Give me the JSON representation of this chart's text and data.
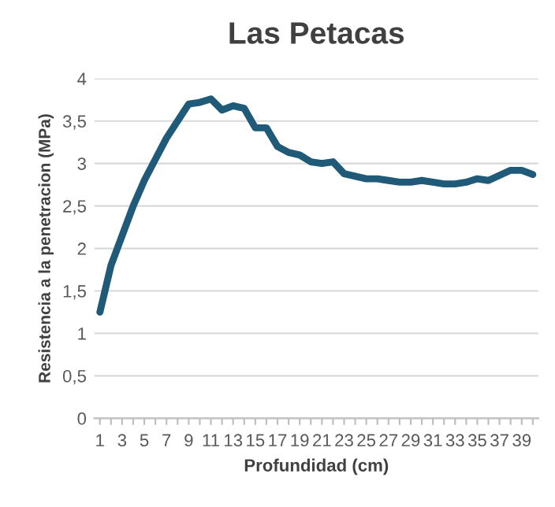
{
  "chart_data": {
    "type": "line",
    "title": "Las Petacas",
    "xlabel": "Profundidad (cm)",
    "ylabel": "Resistencia a la penetracion (MPa)",
    "categories": [
      "1",
      null,
      "3",
      null,
      "5",
      null,
      "7",
      null,
      "9",
      null,
      "11",
      null,
      "13",
      null,
      "15",
      null,
      "17",
      null,
      "19",
      null,
      "21",
      null,
      "23",
      null,
      "25",
      null,
      "27",
      null,
      "29",
      null,
      "31",
      null,
      "33",
      null,
      "35",
      null,
      "37",
      null,
      "39",
      null
    ],
    "series": [
      {
        "color": "#1f5a78",
        "values": [
          1.25,
          1.8,
          2.15,
          2.5,
          2.8,
          3.05,
          3.3,
          3.5,
          3.7,
          3.72,
          3.76,
          3.63,
          3.68,
          3.65,
          3.42,
          3.42,
          3.2,
          3.13,
          3.1,
          3.02,
          3.0,
          3.02,
          2.88,
          2.85,
          2.82,
          2.82,
          2.8,
          2.78,
          2.78,
          2.8,
          2.78,
          2.76,
          2.76,
          2.78,
          2.82,
          2.8,
          2.86,
          2.92,
          2.92,
          2.87
        ]
      }
    ],
    "ylim": [
      0,
      4
    ],
    "yticks": [
      0,
      {
        "value": 0.5,
        "label": "0,5"
      },
      1,
      {
        "value": 1.5,
        "label": "1,5"
      },
      2,
      {
        "value": 2.5,
        "label": "2,5"
      },
      3,
      {
        "value": 3.5,
        "label": "3,5"
      },
      4
    ],
    "grid": "y",
    "legend": false,
    "marker": "none",
    "line_style": "solid"
  }
}
